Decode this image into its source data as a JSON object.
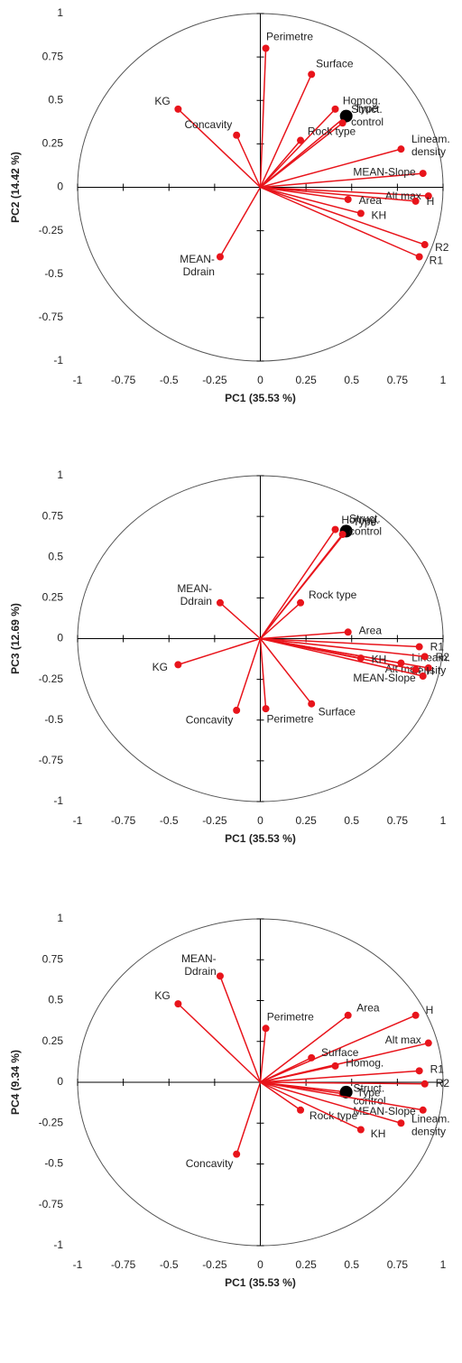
{
  "chart_data": [
    {
      "type": "scatter",
      "xlabel": "PC1 (35.53 %)",
      "ylabel": "PC2 (14.42 %)",
      "xlim": [
        -1,
        1
      ],
      "ylim": [
        -1,
        1
      ],
      "xticks": [
        -1,
        -0.75,
        -0.5,
        -0.25,
        0,
        0.25,
        0.5,
        0.75,
        1
      ],
      "yticks": [
        -1,
        -0.75,
        -0.5,
        -0.25,
        0,
        0.25,
        0.5,
        0.75,
        1
      ],
      "labels": [
        "Perimetre",
        "Surface",
        "Homog.",
        "Type",
        "Struct.\ncontrol",
        "Rock type",
        "KG",
        "Concavity",
        "Lineam.\ndensity",
        "MEAN-Slope",
        "Alt max",
        "H",
        "KH",
        "Area",
        "R2",
        "R1",
        "MEAN-\nDdrain"
      ],
      "x": [
        0.03,
        0.28,
        0.41,
        0.47,
        0.45,
        0.22,
        -0.45,
        -0.13,
        0.77,
        0.89,
        0.92,
        0.85,
        0.55,
        0.48,
        0.9,
        0.87,
        -0.22
      ],
      "y": [
        0.8,
        0.65,
        0.45,
        0.41,
        0.37,
        0.27,
        0.45,
        0.3,
        0.22,
        0.08,
        -0.05,
        -0.08,
        -0.15,
        -0.07,
        -0.33,
        -0.4,
        -0.4
      ],
      "colors": [
        "#e8141b",
        "#e8141b",
        "#e8141b",
        "#000000",
        "#e8141b",
        "#e8141b",
        "#e8141b",
        "#e8141b",
        "#e8141b",
        "#e8141b",
        "#e8141b",
        "#e8141b",
        "#e8141b",
        "#e8141b",
        "#e8141b",
        "#e8141b",
        "#e8141b"
      ],
      "marker_sizes": [
        4,
        4,
        4,
        7,
        4,
        4,
        4,
        4,
        4,
        4,
        4,
        4,
        4,
        4,
        4,
        4,
        4
      ]
    },
    {
      "type": "scatter",
      "xlabel": "PC1 (35.53 %)",
      "ylabel": "PC3 (12.69 %)",
      "xlim": [
        -1,
        1
      ],
      "ylim": [
        -1,
        1
      ],
      "xticks": [
        -1,
        -0.75,
        -0.5,
        -0.25,
        0,
        0.25,
        0.5,
        0.75,
        1
      ],
      "yticks": [
        -1,
        -0.75,
        -0.5,
        -0.25,
        0,
        0.25,
        0.5,
        0.75,
        1
      ],
      "labels": [
        "Homog.",
        "Type",
        "Struct.\ncontrol",
        "MEAN-\nDdrain",
        "Rock type",
        "Area",
        "Lineam.\ndensity",
        "R1",
        "R2",
        "Alt max",
        "H",
        "MEAN-Slope",
        "KH",
        "KG",
        "Concavity",
        "Perimetre",
        "Surface"
      ],
      "x": [
        0.41,
        0.47,
        0.45,
        -0.22,
        0.22,
        0.48,
        0.77,
        0.87,
        0.9,
        0.92,
        0.85,
        0.89,
        0.55,
        -0.45,
        -0.13,
        0.03,
        0.28
      ],
      "y": [
        0.67,
        0.66,
        0.64,
        0.22,
        0.22,
        0.04,
        -0.15,
        -0.05,
        -0.11,
        -0.18,
        -0.19,
        -0.23,
        -0.12,
        -0.16,
        -0.44,
        -0.43,
        -0.4
      ],
      "colors": [
        "#e8141b",
        "#000000",
        "#e8141b",
        "#e8141b",
        "#e8141b",
        "#e8141b",
        "#e8141b",
        "#e8141b",
        "#e8141b",
        "#e8141b",
        "#e8141b",
        "#e8141b",
        "#e8141b",
        "#e8141b",
        "#e8141b",
        "#e8141b",
        "#e8141b"
      ],
      "marker_sizes": [
        4,
        7,
        4,
        4,
        4,
        4,
        4,
        4,
        4,
        4,
        4,
        4,
        4,
        4,
        4,
        4,
        4
      ]
    },
    {
      "type": "scatter",
      "xlabel": "PC1 (35.53 %)",
      "ylabel": "PC4 (9.34 %)",
      "xlim": [
        -1,
        1
      ],
      "ylim": [
        -1,
        1
      ],
      "xticks": [
        -1,
        -0.75,
        -0.5,
        -0.25,
        0,
        0.25,
        0.5,
        0.75,
        1
      ],
      "yticks": [
        -1,
        -0.75,
        -0.5,
        -0.25,
        0,
        0.25,
        0.5,
        0.75,
        1
      ],
      "labels": [
        "MEAN-\nDdrain",
        "KG",
        "Perimetre",
        "Area",
        "H",
        "Alt max",
        "Surface",
        "Homog.",
        "R1",
        "R2",
        "Struct.\ncontrol",
        "Type",
        "MEAN-Slope",
        "Lineam.\ndensity",
        "Rock type",
        "KH",
        "Concavity"
      ],
      "x": [
        -0.22,
        -0.45,
        0.03,
        0.48,
        0.85,
        0.92,
        0.28,
        0.41,
        0.87,
        0.9,
        0.45,
        0.47,
        0.89,
        0.77,
        0.22,
        0.55,
        -0.13
      ],
      "y": [
        0.65,
        0.48,
        0.33,
        0.41,
        0.41,
        0.24,
        0.15,
        0.1,
        0.07,
        -0.01,
        -0.07,
        -0.06,
        -0.17,
        -0.25,
        -0.17,
        -0.29,
        -0.44
      ],
      "colors": [
        "#e8141b",
        "#e8141b",
        "#e8141b",
        "#e8141b",
        "#e8141b",
        "#e8141b",
        "#e8141b",
        "#e8141b",
        "#e8141b",
        "#e8141b",
        "#e8141b",
        "#000000",
        "#e8141b",
        "#e8141b",
        "#e8141b",
        "#e8141b",
        "#e8141b"
      ],
      "marker_sizes": [
        4,
        4,
        4,
        4,
        4,
        4,
        4,
        4,
        4,
        4,
        4,
        7,
        4,
        4,
        4,
        4,
        4
      ]
    }
  ]
}
